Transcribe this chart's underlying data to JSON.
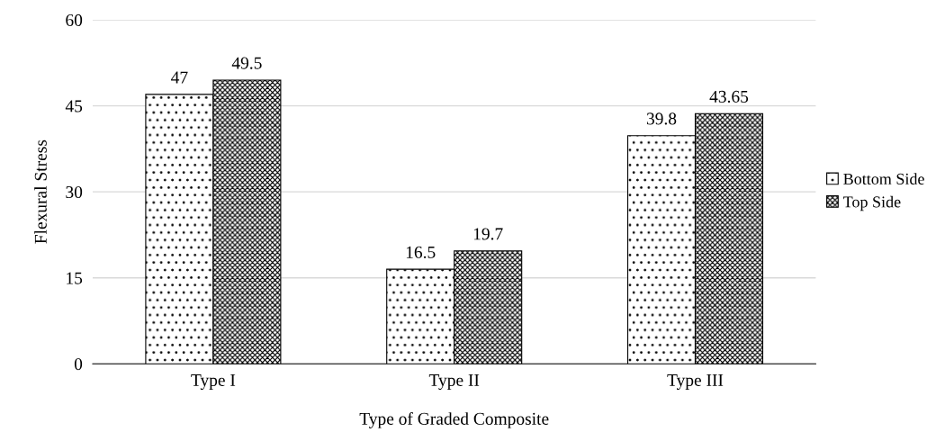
{
  "chart_data": {
    "type": "bar",
    "xlabel": "Type of Graded Composite",
    "ylabel": "Flexural Stress",
    "categories": [
      "Type I",
      "Type II",
      "Type III"
    ],
    "series": [
      {
        "name": "Bottom Side",
        "color": "#000000",
        "values": [
          47,
          16.5,
          39.8
        ]
      },
      {
        "name": "Top Side",
        "color": "#000000",
        "values": [
          49.5,
          19.7,
          43.65
        ]
      }
    ],
    "ylim": [
      0,
      60
    ],
    "yticks": [
      0,
      15,
      30,
      45,
      60
    ],
    "grid": "y",
    "legend": "right",
    "data_labels": true
  }
}
